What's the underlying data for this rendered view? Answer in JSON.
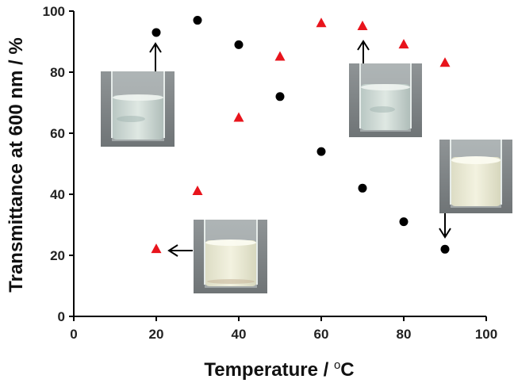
{
  "chart_data": {
    "type": "scatter",
    "title": "",
    "xlabel_main": "Temperature / ",
    "xlabel_degree": "o",
    "xlabel_unit": "C",
    "ylabel": "Transmittance at 600 nm / %",
    "xlim": [
      0,
      100
    ],
    "ylim": [
      0,
      100
    ],
    "x_ticks": [
      "0",
      "20",
      "40",
      "60",
      "80",
      "100"
    ],
    "y_ticks": [
      "0",
      "20",
      "40",
      "60",
      "80",
      "100"
    ],
    "grid": false,
    "series": [
      {
        "marker": "circle",
        "color": "#000000",
        "x": [
          20,
          30,
          40,
          50,
          60,
          70,
          80,
          90
        ],
        "y": [
          93,
          97,
          89,
          72,
          54,
          42,
          31,
          22
        ]
      },
      {
        "marker": "triangle",
        "color": "#e8141c",
        "x": [
          20,
          30,
          40,
          50,
          60,
          70,
          80,
          90
        ],
        "y": [
          22,
          41,
          65,
          85,
          96,
          95,
          89,
          83
        ]
      }
    ],
    "annotations": [
      {
        "name": "vial-clear-20",
        "arrow": "up",
        "points_to": [
          20,
          93
        ]
      },
      {
        "name": "vial-clear-70",
        "arrow": "up",
        "points_to": [
          70,
          95
        ]
      },
      {
        "name": "vial-turbid-90",
        "arrow": "down",
        "points_to": [
          90,
          22
        ]
      },
      {
        "name": "vial-turbid-20",
        "arrow": "left",
        "points_to": [
          20,
          22
        ]
      }
    ]
  }
}
